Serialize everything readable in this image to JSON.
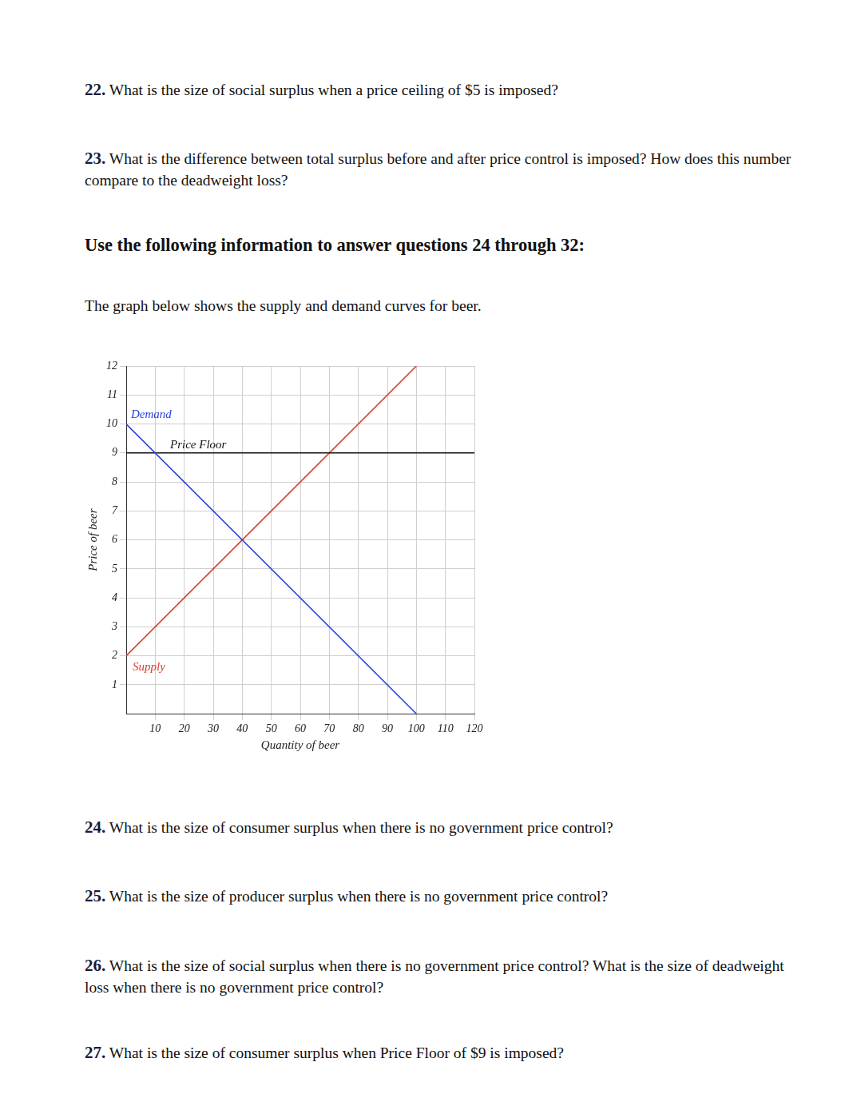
{
  "document": {
    "questions_before": [
      {
        "number": "22.",
        "text": "What is the size of social surplus when a price ceiling of $5 is imposed?"
      },
      {
        "number": "23.",
        "text": "What is the difference between total surplus before and after price control is imposed? How does this number compare to the deadweight loss?"
      }
    ],
    "section_heading": "Use the following information to answer questions 24 through 32:",
    "intro": "The graph below shows the supply and demand curves for beer.",
    "questions_after": [
      {
        "number": "24.",
        "text": "What is the size of consumer surplus when there is no government price control?"
      },
      {
        "number": "25.",
        "text": "What is the size of producer surplus when there is no government price control?"
      },
      {
        "number": "26.",
        "text": "What is the size of social surplus when there is no government price control? What is the size of deadweight loss when there is no government price control?"
      },
      {
        "number": "27.",
        "text": "What is the size of consumer surplus when Price Floor of $9 is imposed?"
      }
    ]
  },
  "chart_data": {
    "type": "line",
    "x_label": "Quantity of beer",
    "y_label": "Price of beer",
    "xlim": [
      0,
      120
    ],
    "xticks": [
      10,
      20,
      30,
      40,
      50,
      60,
      70,
      80,
      90,
      100,
      110,
      120
    ],
    "ylim": [
      0,
      12
    ],
    "yticks": [
      1,
      2,
      3,
      4,
      5,
      6,
      7,
      8,
      9,
      10,
      11,
      12
    ],
    "grid": true,
    "series": [
      {
        "name": "Demand",
        "color": "#2a3fd8",
        "x": [
          0,
          100
        ],
        "values": [
          10,
          0
        ]
      },
      {
        "name": "Price Floor",
        "color": "#111111",
        "x": [
          0,
          120
        ],
        "values": [
          9,
          9
        ]
      },
      {
        "name": "Supply",
        "color": "#e0392b",
        "x": [
          0,
          100
        ],
        "values": [
          2,
          12
        ]
      }
    ]
  }
}
